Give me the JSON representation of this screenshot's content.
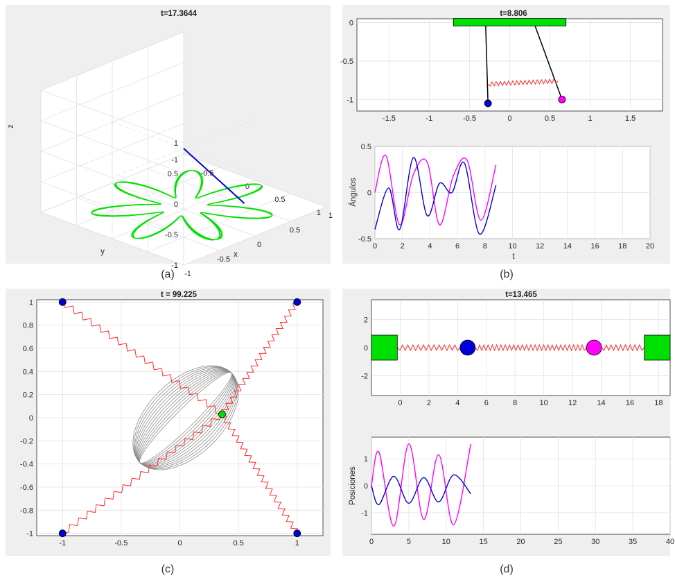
{
  "figure": {
    "captions": [
      "(a)",
      "(b)",
      "(c)",
      "(d)"
    ]
  },
  "colors": {
    "green": "#00e000",
    "blue": "#0000d8",
    "magenta": "#ff00ff",
    "red_spring": "#ff2a2a",
    "gray_traj": "#8c8c8c",
    "panel_bg": "#efefef"
  },
  "chart_data": [
    {
      "panel": "a",
      "type": "line",
      "title": "t=17.3644",
      "xlabel": "x",
      "ylabel": "y",
      "zlabel": "z",
      "xticks": [
        "-1",
        "-0.5",
        "0",
        "0.5",
        "1"
      ],
      "yticks": [
        "1",
        "0.5",
        "0",
        "-0.5",
        "-1"
      ],
      "zticks": [
        "1",
        "0.5",
        "0",
        "-0.5",
        "-1"
      ],
      "xlim": [
        -1,
        1
      ],
      "ylim": [
        -1,
        1
      ],
      "zlim": [
        -1,
        1
      ],
      "grid": true,
      "trajectory": {
        "color": "green",
        "z": -0.95,
        "inner_radius": 0.22,
        "outer_radius": 0.85,
        "lobes": 11
      },
      "pendulum_tip": [
        0.5,
        -0.35,
        -0.85
      ]
    },
    {
      "panel": "b_top",
      "type": "scatter",
      "title": "t=8.806",
      "xticks": [
        "-1.5",
        "-1",
        "-0.5",
        "0",
        "0.5",
        "1",
        "1.5"
      ],
      "yticks": [
        "0",
        "-0.5",
        "-1"
      ],
      "xlim": [
        -1.9,
        1.9
      ],
      "ylim": [
        -1.15,
        0.05
      ],
      "support": {
        "x0": -0.7,
        "x1": 0.7,
        "y": 0
      },
      "pivots": [
        -0.3,
        0.3
      ],
      "bobs": [
        {
          "name": "blue bob",
          "x": -0.27,
          "y": -1.05,
          "color": "blue"
        },
        {
          "name": "magenta bob",
          "x": 0.65,
          "y": -1.0,
          "color": "magenta"
        }
      ],
      "spring": {
        "x0": -0.27,
        "y0": -0.8,
        "x1": 0.6,
        "y1": -0.76
      }
    },
    {
      "panel": "b_bottom",
      "type": "line",
      "xlabel": "t",
      "ylabel": "Ángulos",
      "xticks": [
        "0",
        "2",
        "4",
        "6",
        "8",
        "10",
        "12",
        "14",
        "16",
        "18",
        "20"
      ],
      "yticks": [
        "0.5",
        "0",
        "-0.5"
      ],
      "xlim": [
        0,
        20
      ],
      "ylim": [
        -0.5,
        0.5
      ],
      "series": [
        {
          "color": "magenta",
          "x": [
            0,
            0.8,
            1.8,
            2.8,
            3.8,
            4.7,
            5.7,
            6.7,
            7.7,
            8.8
          ],
          "y": [
            0.0,
            0.4,
            -0.35,
            0.2,
            0.33,
            -0.35,
            0.18,
            0.35,
            -0.3,
            0.3
          ]
        },
        {
          "color": "blue",
          "x": [
            0,
            1.0,
            1.8,
            2.8,
            3.8,
            4.7,
            5.6,
            6.5,
            7.6,
            8.8
          ],
          "y": [
            -0.4,
            0.05,
            -0.4,
            0.38,
            -0.25,
            0.1,
            0.0,
            0.32,
            -0.45,
            0.08
          ]
        }
      ]
    },
    {
      "panel": "c",
      "type": "line",
      "title": "t = 99.225",
      "xticks": [
        "-1",
        "-0.5",
        "0",
        "0.5",
        "1"
      ],
      "yticks": [
        "1",
        "0.8",
        "0.6",
        "0.4",
        "0.2",
        "0",
        "-0.2",
        "-0.4",
        "-0.6",
        "-0.8",
        "-1"
      ],
      "xlim": [
        -1.22,
        1.22
      ],
      "ylim": [
        -1.02,
        1.02
      ],
      "anchors": [
        [
          -1,
          1
        ],
        [
          1,
          1
        ],
        [
          -1,
          -1
        ],
        [
          1,
          -1
        ]
      ],
      "mass": [
        0.36,
        0.03
      ],
      "trajectory": {
        "center": [
          0.05,
          0.0
        ],
        "major": 0.55,
        "minor": 0.32,
        "angle_deg": 45,
        "loops": 12
      }
    },
    {
      "panel": "d_top",
      "type": "scatter",
      "title": "t=13.465",
      "xticks": [
        "0",
        "2",
        "4",
        "6",
        "8",
        "10",
        "12",
        "14",
        "16",
        "18"
      ],
      "yticks": [
        "2",
        "0",
        "-2"
      ],
      "xlim": [
        -2.0,
        18.8
      ],
      "ylim": [
        -3.4,
        3.4
      ],
      "walls": [
        {
          "x0": -2.0,
          "x1": -0.2
        },
        {
          "x0": 17.0,
          "x1": 18.8
        }
      ],
      "masses": [
        {
          "name": "blue mass",
          "x": 4.7,
          "color": "blue"
        },
        {
          "name": "magenta mass",
          "x": 13.5,
          "color": "magenta"
        }
      ]
    },
    {
      "panel": "d_bottom",
      "type": "line",
      "ylabel": "Posiciones",
      "xticks": [
        "0",
        "5",
        "10",
        "15",
        "20",
        "25",
        "30",
        "35",
        "40"
      ],
      "yticks": [
        "1",
        "0",
        "-1"
      ],
      "xlim": [
        0,
        40
      ],
      "ylim": [
        -1.8,
        1.8
      ],
      "series": [
        {
          "color": "magenta",
          "x": [
            0,
            1.0,
            3.0,
            5.0,
            7.0,
            9.0,
            11.0,
            13.3
          ],
          "y": [
            0.0,
            1.25,
            -1.5,
            1.55,
            -1.25,
            1.15,
            -1.45,
            1.55
          ]
        },
        {
          "color": "blue",
          "x": [
            0,
            1.0,
            3.0,
            5.0,
            7.0,
            9.0,
            11.0,
            13.3
          ],
          "y": [
            0.0,
            -0.7,
            0.35,
            -0.65,
            0.3,
            -0.6,
            0.4,
            -0.3
          ]
        }
      ]
    }
  ]
}
